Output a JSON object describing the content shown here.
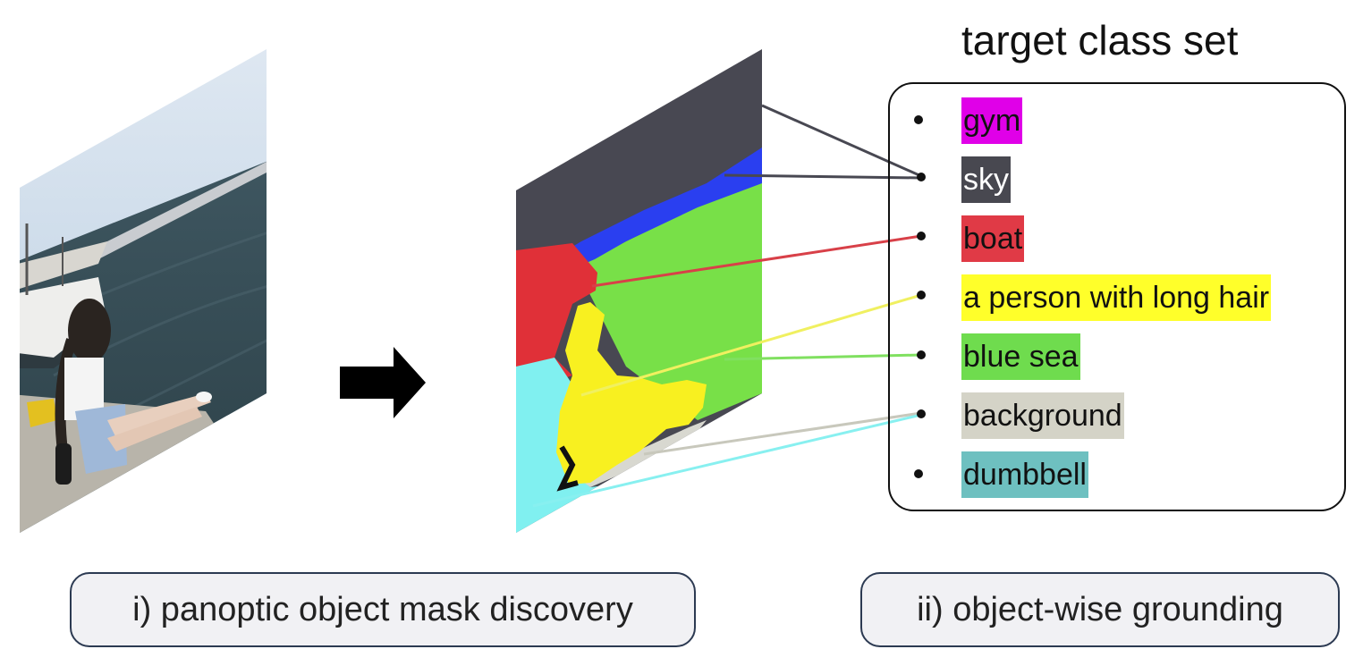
{
  "class_panel": {
    "title": "target class set",
    "items": [
      {
        "label": "gym",
        "bg": "#e000e8",
        "fg": "#111111"
      },
      {
        "label": " sky",
        "bg": "#484850",
        "fg": "#ffffff"
      },
      {
        "label": "boat",
        "bg": "#e03a46",
        "fg": "#111111"
      },
      {
        "label": "a person with long hair",
        "bg": "#ffff2a",
        "fg": "#111111"
      },
      {
        "label": "blue sea",
        "bg": "#6fdc4e",
        "fg": "#111111"
      },
      {
        "label": "background",
        "bg": "#d4d3c7",
        "fg": "#111111"
      },
      {
        "label": "dumbbell",
        "bg": "#6ec0c0",
        "fg": "#111111"
      }
    ]
  },
  "captions": {
    "left": "i) panoptic object mask discovery",
    "right": "ii) object-wise grounding"
  },
  "mask_colors": {
    "sky": "#484852",
    "blue_band": "#2a3ff0",
    "sea": "#78e048",
    "boat": "#e03038",
    "person": "#f8f020",
    "background": "#d8d8d0",
    "dumbbell_region": "#80f0f0"
  },
  "line_colors": {
    "sky": "#484852",
    "boat": "#d84048",
    "person": "#f0f060",
    "sea": "#80e060",
    "background": "#c8c8bc",
    "dumbbell": "#88f0f0"
  }
}
